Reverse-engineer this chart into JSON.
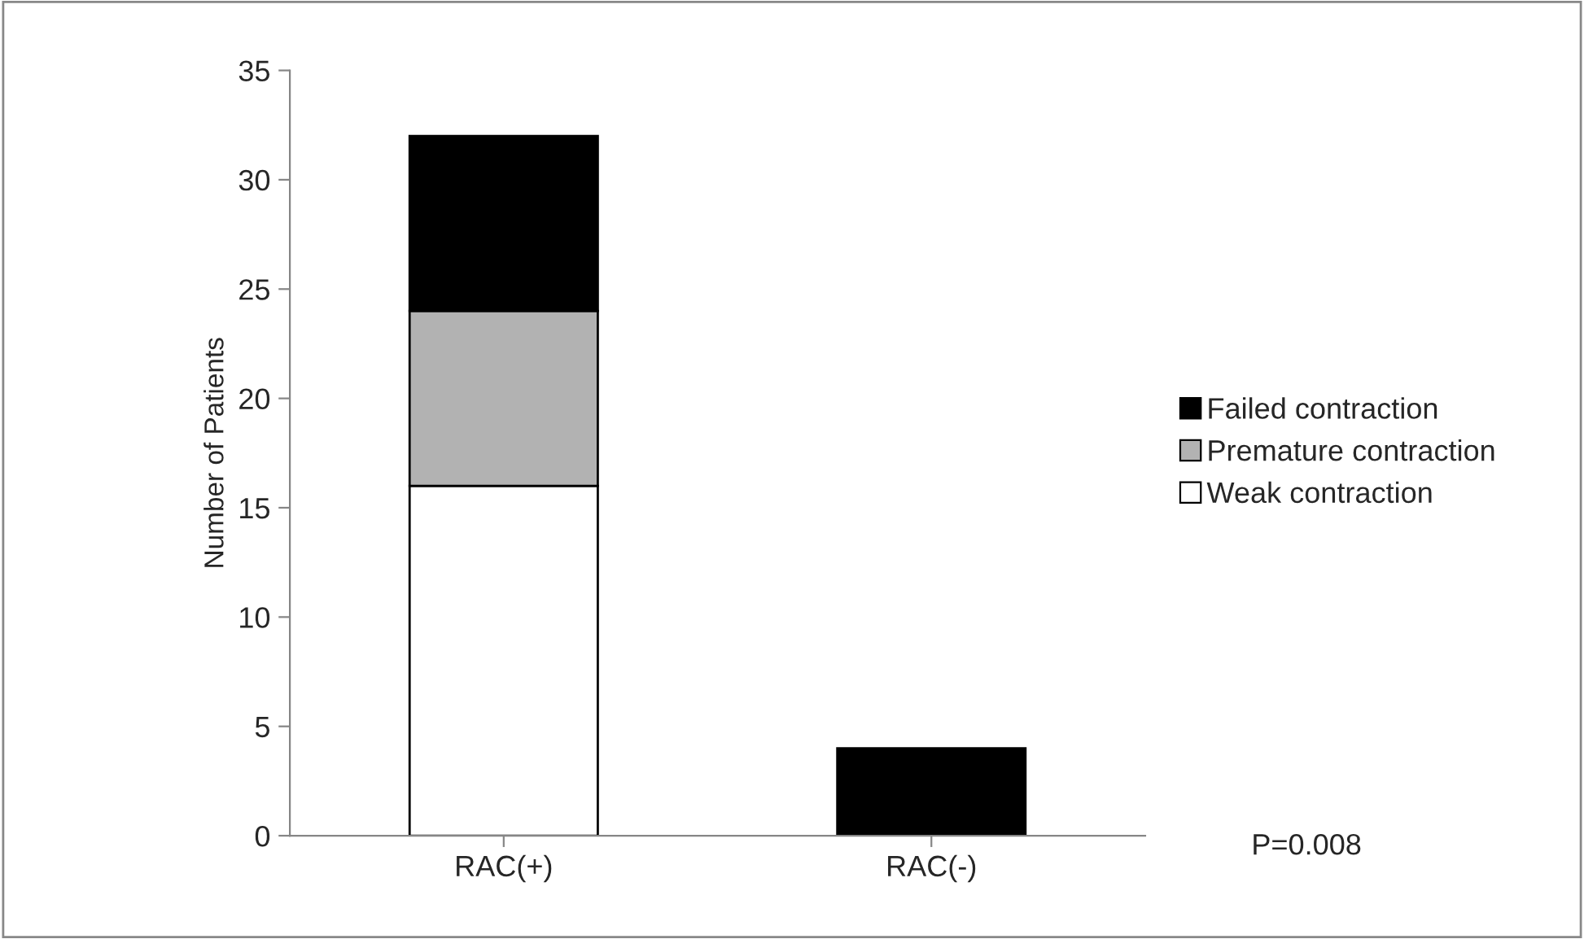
{
  "chart_data": {
    "type": "bar",
    "stacked": true,
    "ylabel": "Number of Patients",
    "categories": [
      "RAC(+)",
      "RAC(-)"
    ],
    "series": [
      {
        "name": "Weak contraction",
        "color": "#ffffff",
        "values": [
          16,
          0
        ]
      },
      {
        "name": "Premature contraction",
        "color": "#b2b2b2",
        "values": [
          8,
          0
        ]
      },
      {
        "name": "Failed contraction",
        "color": "#000000",
        "values": [
          8,
          4
        ]
      }
    ],
    "ylim": [
      0,
      35
    ],
    "yticks": [
      0,
      5,
      10,
      15,
      20,
      25,
      30,
      35
    ],
    "grid": false,
    "legend": "right",
    "annotations": [
      "P=0.008"
    ]
  }
}
